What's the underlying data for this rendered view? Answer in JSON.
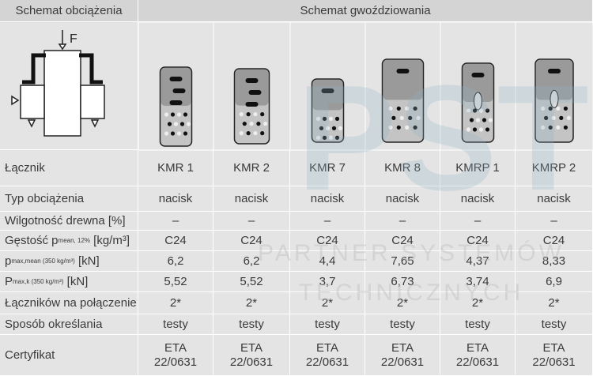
{
  "header": {
    "left": "Schemat obciążenia",
    "right": "Schemat gwoździowania"
  },
  "diagram": {
    "force": "F"
  },
  "watermark": {
    "logo": "PST",
    "line1": "PARTNER SYSTEMÓW",
    "line2": "TECHNICZNYCH"
  },
  "table": {
    "first_label": "Łącznik",
    "columns": [
      "KMR 1",
      "KMR 2",
      "KMR 7",
      "KMR 8",
      "KMRP 1",
      "KMRP 2"
    ],
    "rows": [
      {
        "label": "Typ obciążenia",
        "cells": [
          "nacisk",
          "nacisk",
          "nacisk",
          "nacisk",
          "nacisk",
          "nacisk"
        ]
      },
      {
        "label": "Wilgotność drewna [%]",
        "cells": [
          "–",
          "–",
          "–",
          "–",
          "–",
          "–"
        ]
      },
      {
        "label": "Gęstość p",
        "label_sub": "mean, 12%",
        "label_unit": " [kg/m³]",
        "cells": [
          "C24",
          "C24",
          "C24",
          "C24",
          "C24",
          "C24"
        ]
      },
      {
        "label": "p",
        "label_sub": "max,mean (350 kg/m³)",
        "label_unit": " [kN]",
        "cells": [
          "6,2",
          "6,2",
          "4,4",
          "7,65",
          "4,37",
          "8,33"
        ]
      },
      {
        "label": "P",
        "label_sub": "max,k (350 kg/m³)",
        "label_unit": " [kN]",
        "cells": [
          "5,52",
          "5,52",
          "3,7",
          "6,73",
          "3,74",
          "6,9"
        ]
      },
      {
        "label": "Łączników na połączenie",
        "cells": [
          "2*",
          "2*",
          "2*",
          "2*",
          "2*",
          "2*"
        ]
      },
      {
        "label": "Sposób określania",
        "cells": [
          "testy",
          "testy",
          "testy",
          "testy",
          "testy",
          "testy"
        ]
      },
      {
        "label": "Certyfikat",
        "cells": [
          [
            "ETA",
            "22/0631"
          ],
          [
            "ETA",
            "22/0631"
          ],
          [
            "ETA",
            "22/0631"
          ],
          [
            "ETA",
            "22/0631"
          ],
          [
            "ETA",
            "22/0631"
          ],
          [
            "ETA",
            "22/0631"
          ]
        ]
      }
    ]
  }
}
